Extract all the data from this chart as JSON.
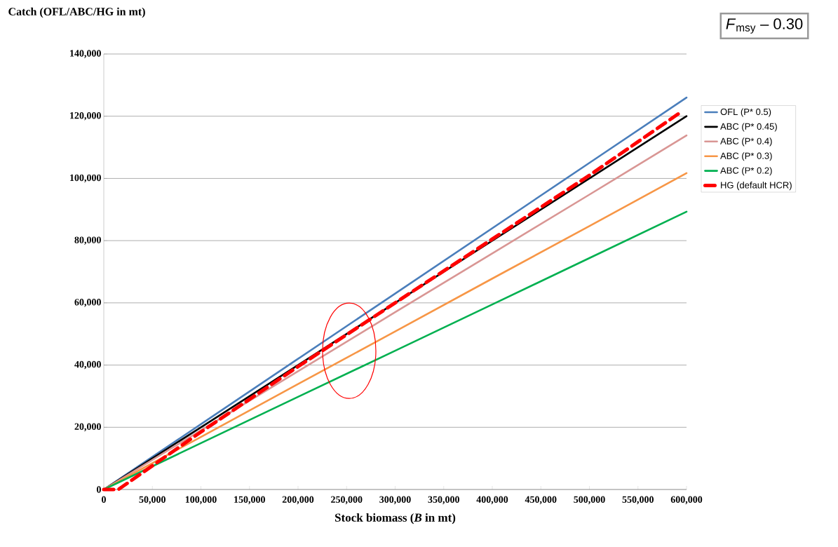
{
  "chart_data": {
    "type": "line",
    "xlabel": "Stock biomass (*B* in mt)",
    "ylabel": "Catch (OFL/ABC/HG in mt)",
    "x": [
      0,
      100000,
      200000,
      300000,
      400000,
      500000,
      600000
    ],
    "series": [
      {
        "name": "OFL (P* 0.5)",
        "color": "#4a7ebb",
        "values": [
          0,
          21000,
          42000,
          63000,
          84000,
          105000,
          126000
        ]
      },
      {
        "name": "ABC (P* 0.45)",
        "color": "#000000",
        "values": [
          0,
          20000,
          40000,
          60000,
          80000,
          100000,
          120000
        ]
      },
      {
        "name": "ABC (P* 0.4)",
        "color": "#d99694",
        "values": [
          0,
          19000,
          38000,
          57000,
          75900,
          94800,
          113800
        ]
      },
      {
        "name": "ABC (P* 0.3)",
        "color": "#f79646",
        "values": [
          0,
          16900,
          33900,
          50800,
          67800,
          84700,
          101700
        ]
      },
      {
        "name": "ABC (P* 0.2)",
        "color": "#00b050",
        "values": [
          0,
          14900,
          29800,
          44600,
          59500,
          74400,
          89300
        ]
      },
      {
        "name": "HG (default HCR)",
        "color": "#ff0000",
        "line_style": "dashed",
        "x": [
          0,
          15000,
          100000,
          200000,
          300000,
          400000,
          500000,
          595000
        ],
        "values": [
          0,
          0,
          18500,
          39500,
          60000,
          80500,
          101000,
          121500
        ]
      }
    ],
    "xlim": [
      0,
      600000
    ],
    "ylim": [
      0,
      140000
    ],
    "xticks": [
      0,
      {
        "value": 50000,
        "label": "50,000"
      },
      {
        "value": 100000,
        "label": "100,000"
      },
      {
        "value": 150000,
        "label": "150,000"
      },
      {
        "value": 200000,
        "label": "200,000"
      },
      {
        "value": 250000,
        "label": "250,000"
      },
      {
        "value": 300000,
        "label": "300,000"
      },
      {
        "value": 350000,
        "label": "350,000"
      },
      {
        "value": 400000,
        "label": "400,000"
      },
      {
        "value": 450000,
        "label": "450,000"
      },
      {
        "value": 500000,
        "label": "500,000"
      },
      {
        "value": 550000,
        "label": "550,000"
      },
      {
        "value": 600000,
        "label": "600,000"
      }
    ],
    "yticks": [
      0,
      {
        "value": 20000,
        "label": "20,000"
      },
      {
        "value": 40000,
        "label": "40,000"
      },
      {
        "value": 60000,
        "label": "60,000"
      },
      {
        "value": 80000,
        "label": "80,000"
      },
      {
        "value": 100000,
        "label": "100,000"
      },
      {
        "value": 120000,
        "label": "120,000"
      },
      {
        "value": 140000,
        "label": "140,000"
      }
    ],
    "grid": "y",
    "legend": "right",
    "annotations": [
      "*F*$_{msy}$ – 0.30"
    ]
  }
}
